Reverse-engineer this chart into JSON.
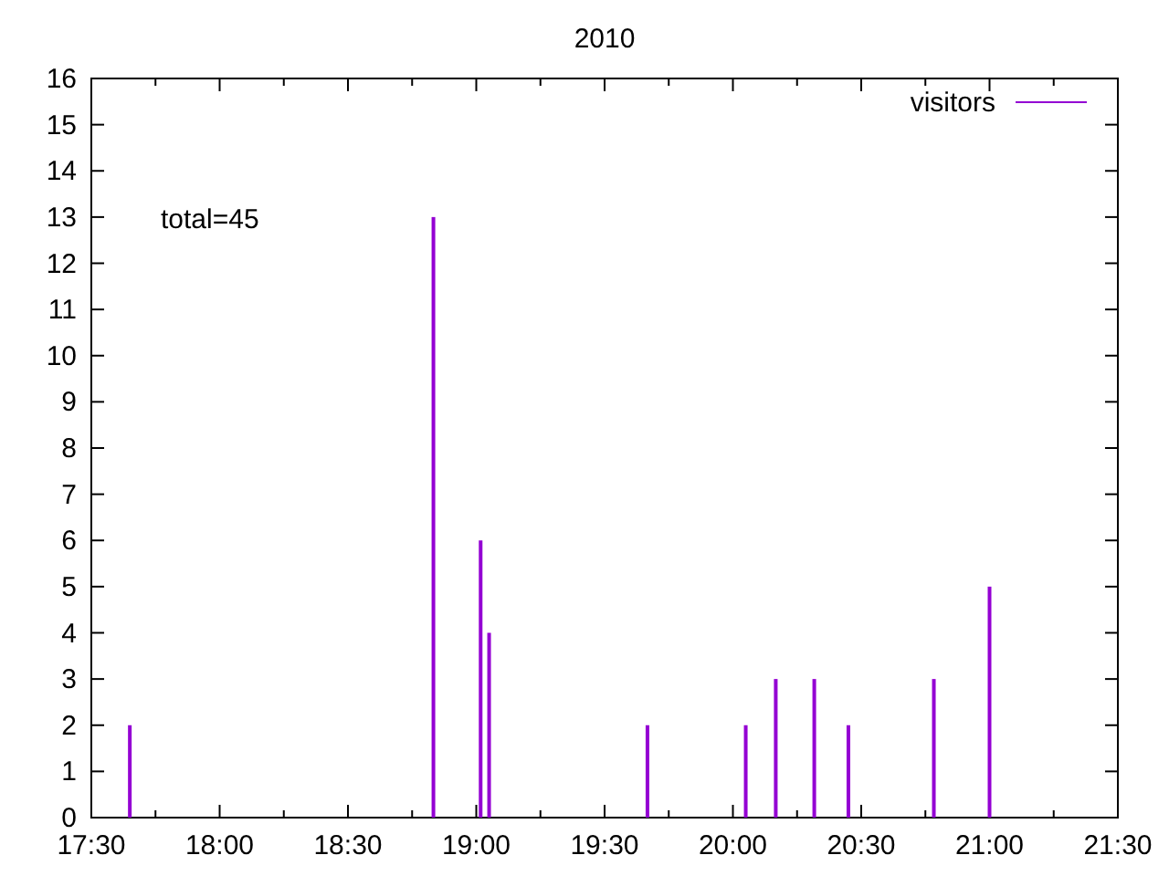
{
  "chart_data": {
    "type": "bar",
    "title": "2010",
    "annotations": [
      "total=45"
    ],
    "x": [
      17.65,
      18.833,
      19.017,
      19.05,
      19.667,
      20.05,
      20.167,
      20.317,
      20.45,
      20.783,
      21.0
    ],
    "series": [
      {
        "name": "visitors",
        "color": "#9400d3",
        "values": [
          2,
          13,
          6,
          4,
          2,
          2,
          3,
          3,
          2,
          3,
          5
        ]
      }
    ],
    "xlim": [
      17.5,
      21.5
    ],
    "xticks": [
      {
        "value": 17.5,
        "label": "17:30"
      },
      {
        "value": 17.75,
        "label": null
      },
      {
        "value": 18,
        "label": "18:00"
      },
      {
        "value": 18.25,
        "label": null
      },
      {
        "value": 18.5,
        "label": "18:30"
      },
      {
        "value": 18.75,
        "label": null
      },
      {
        "value": 19,
        "label": "19:00"
      },
      {
        "value": 19.25,
        "label": null
      },
      {
        "value": 19.5,
        "label": "19:30"
      },
      {
        "value": 19.75,
        "label": null
      },
      {
        "value": 20,
        "label": "20:00"
      },
      {
        "value": 20.25,
        "label": null
      },
      {
        "value": 20.5,
        "label": "20:30"
      },
      {
        "value": 20.75,
        "label": null
      },
      {
        "value": 21,
        "label": "21:00"
      },
      {
        "value": 21.25,
        "label": null
      },
      {
        "value": 21.5,
        "label": "21:30"
      }
    ],
    "ylim": [
      0,
      16
    ],
    "yticks": [
      0,
      1,
      2,
      3,
      4,
      5,
      6,
      7,
      8,
      9,
      10,
      11,
      12,
      13,
      14,
      15,
      16
    ],
    "legend": "top right",
    "grid": false
  }
}
